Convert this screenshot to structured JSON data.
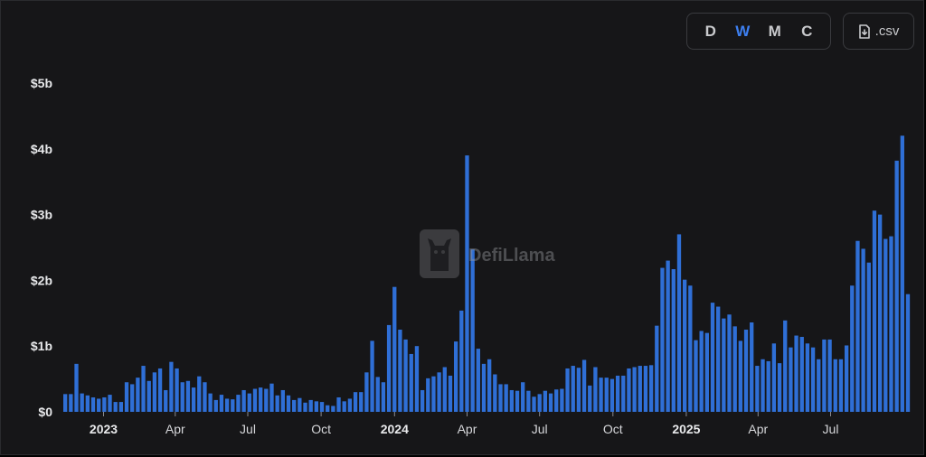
{
  "controls": {
    "timeframes": [
      {
        "label": "D",
        "active": false
      },
      {
        "label": "W",
        "active": true
      },
      {
        "label": "M",
        "active": false
      },
      {
        "label": "C",
        "active": false
      }
    ],
    "csv_label": ".csv",
    "csv_icon": "file-download-icon"
  },
  "watermark": {
    "text": "DefiLlama",
    "icon": "llama-logo-icon"
  },
  "colors": {
    "bar": "#2f6fd6",
    "background": "#161618",
    "active": "#3d7ff0",
    "text": "#d6d7da"
  },
  "chart_data": {
    "type": "bar",
    "title": "",
    "xlabel": "",
    "ylabel": "",
    "ylim": [
      0,
      5
    ],
    "y_unit": "billions USD",
    "y_ticks": [
      0,
      1,
      2,
      3,
      4,
      5
    ],
    "y_tick_labels": [
      "$0",
      "$1b",
      "$2b",
      "$3b",
      "$4b",
      "$5b"
    ],
    "grid": false,
    "legend": "none",
    "x_start": "2022-11-14",
    "x_interval": "weekly",
    "x_ticks": [
      {
        "label": "2023",
        "date": "2023-01-01",
        "bold": true
      },
      {
        "label": "Apr",
        "date": "2023-04-01",
        "bold": false
      },
      {
        "label": "Jul",
        "date": "2023-07-01",
        "bold": false
      },
      {
        "label": "Oct",
        "date": "2023-10-01",
        "bold": false
      },
      {
        "label": "2024",
        "date": "2024-01-01",
        "bold": true
      },
      {
        "label": "Apr",
        "date": "2024-04-01",
        "bold": false
      },
      {
        "label": "Jul",
        "date": "2024-07-01",
        "bold": false
      },
      {
        "label": "Oct",
        "date": "2024-10-01",
        "bold": false
      },
      {
        "label": "2025",
        "date": "2025-01-01",
        "bold": true
      },
      {
        "label": "Apr",
        "date": "2025-04-01",
        "bold": false
      },
      {
        "label": "Jul",
        "date": "2025-07-01",
        "bold": false
      }
    ],
    "series": [
      {
        "values": [
          0.27,
          0.27,
          0.73,
          0.28,
          0.25,
          0.22,
          0.2,
          0.22,
          0.26,
          0.15,
          0.15,
          0.45,
          0.42,
          0.52,
          0.7,
          0.47,
          0.6,
          0.66,
          0.33,
          0.76,
          0.66,
          0.45,
          0.47,
          0.37,
          0.54,
          0.45,
          0.28,
          0.18,
          0.26,
          0.2,
          0.19,
          0.26,
          0.33,
          0.28,
          0.35,
          0.37,
          0.35,
          0.43,
          0.25,
          0.33,
          0.25,
          0.18,
          0.21,
          0.14,
          0.18,
          0.16,
          0.15,
          0.1,
          0.09,
          0.22,
          0.16,
          0.2,
          0.3,
          0.3,
          0.6,
          1.08,
          0.53,
          0.45,
          1.32,
          1.9,
          1.25,
          1.1,
          0.88,
          1.0,
          0.33,
          0.51,
          0.54,
          0.6,
          0.68,
          0.55,
          1.07,
          1.54,
          3.9,
          2.47,
          0.96,
          0.73,
          0.8,
          0.57,
          0.42,
          0.42,
          0.33,
          0.32,
          0.45,
          0.32,
          0.23,
          0.27,
          0.32,
          0.28,
          0.34,
          0.35,
          0.66,
          0.7,
          0.67,
          0.79,
          0.4,
          0.68,
          0.52,
          0.52,
          0.5,
          0.55,
          0.55,
          0.66,
          0.68,
          0.7,
          0.7,
          0.71,
          1.31,
          2.19,
          2.3,
          2.17,
          2.7,
          2.01,
          1.92,
          1.09,
          1.23,
          1.2,
          1.66,
          1.6,
          1.42,
          1.48,
          1.3,
          1.08,
          1.25,
          1.36,
          0.7,
          0.8,
          0.77,
          1.04,
          0.74,
          1.39,
          0.98,
          1.16,
          1.14,
          1.04,
          0.98,
          0.8,
          1.1,
          1.1,
          0.8,
          0.8,
          1.01,
          1.92,
          2.6,
          2.48,
          2.27,
          3.06,
          3.0,
          2.63,
          2.67,
          3.82,
          4.2,
          1.79
        ]
      }
    ]
  }
}
